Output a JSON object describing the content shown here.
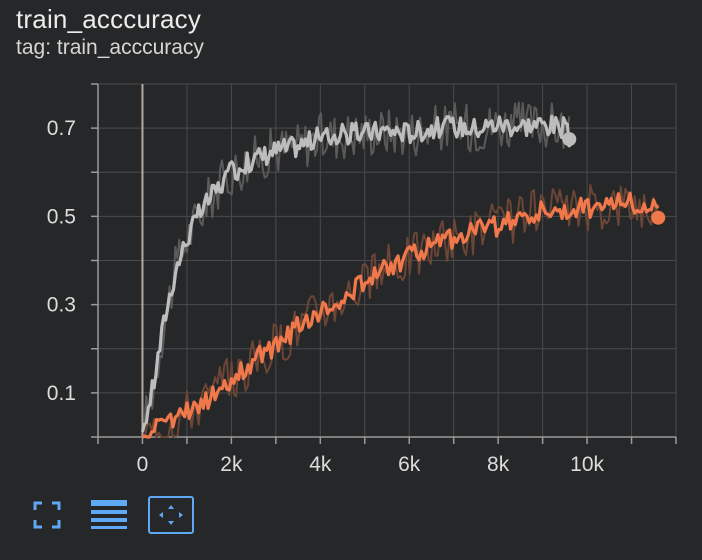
{
  "card": {
    "title": "train_acccuracy",
    "subtitle": "tag: train_acccuracy"
  },
  "toolbar": {
    "items": [
      {
        "name": "fullscreen",
        "icon": "expand-icon",
        "active": false
      },
      {
        "name": "data-table",
        "icon": "lines-icon",
        "active": false
      },
      {
        "name": "fit-domain",
        "icon": "fit-to-domain-icon",
        "active": true
      }
    ]
  },
  "chart_data": {
    "type": "line",
    "title": "",
    "xlabel": "",
    "ylabel": "",
    "xlim": [
      -1000,
      12000
    ],
    "ylim": [
      0,
      0.8
    ],
    "x_ticks": [
      0,
      2000,
      4000,
      6000,
      8000,
      10000
    ],
    "x_tick_labels": [
      "0",
      "2k",
      "4k",
      "6k",
      "8k",
      "10k"
    ],
    "y_ticks": [
      0.1,
      0.3,
      0.5,
      0.7
    ],
    "y_tick_labels": [
      "0.1",
      "0.3",
      "0.5",
      "0.7"
    ],
    "grid": true,
    "legend": "none",
    "series": [
      {
        "color": "#bdbdbd",
        "raw_color": "#5a5a5a",
        "x": [
          0,
          250,
          500,
          750,
          1000,
          1250,
          1500,
          1750,
          2000,
          2500,
          3000,
          3500,
          4000,
          4500,
          5000,
          5500,
          6000,
          6500,
          7000,
          7500,
          8000,
          8500,
          9000,
          9500,
          9600
        ],
        "y": [
          0.01,
          0.12,
          0.27,
          0.38,
          0.45,
          0.5,
          0.54,
          0.57,
          0.6,
          0.63,
          0.65,
          0.66,
          0.68,
          0.685,
          0.69,
          0.695,
          0.69,
          0.7,
          0.705,
          0.7,
          0.71,
          0.705,
          0.71,
          0.7,
          0.675
        ]
      },
      {
        "color": "#f0784a",
        "raw_color": "#6b4535",
        "x": [
          0,
          500,
          1000,
          1500,
          2000,
          2500,
          3000,
          3500,
          4000,
          4500,
          5000,
          5500,
          6000,
          6500,
          7000,
          7500,
          8000,
          8500,
          9000,
          9500,
          10000,
          10500,
          11000,
          11500,
          11600
        ],
        "y": [
          0.0,
          0.03,
          0.06,
          0.09,
          0.13,
          0.17,
          0.21,
          0.25,
          0.29,
          0.32,
          0.35,
          0.38,
          0.41,
          0.43,
          0.45,
          0.47,
          0.48,
          0.5,
          0.51,
          0.51,
          0.52,
          0.53,
          0.53,
          0.52,
          0.497
        ]
      }
    ]
  }
}
